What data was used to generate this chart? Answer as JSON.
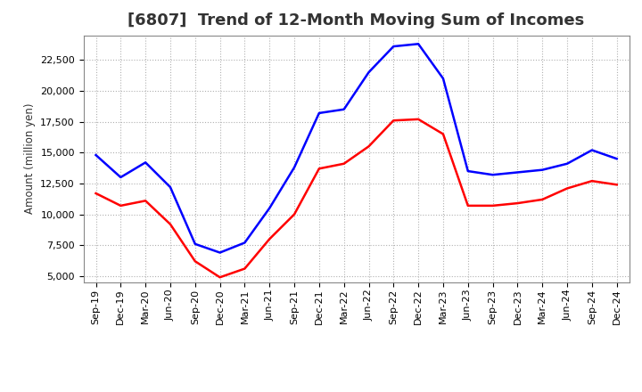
{
  "title": "[6807]  Trend of 12-Month Moving Sum of Incomes",
  "ylabel": "Amount (million yen)",
  "background_color": "#ffffff",
  "grid_color": "#b0b0b0",
  "x_labels": [
    "Sep-19",
    "Dec-19",
    "Mar-20",
    "Jun-20",
    "Sep-20",
    "Dec-20",
    "Mar-21",
    "Jun-21",
    "Sep-21",
    "Dec-21",
    "Mar-22",
    "Jun-22",
    "Sep-22",
    "Dec-22",
    "Mar-23",
    "Jun-23",
    "Sep-23",
    "Dec-23",
    "Mar-24",
    "Jun-24",
    "Sep-24",
    "Dec-24"
  ],
  "ordinary_income": [
    14800,
    13000,
    14200,
    12200,
    7600,
    6900,
    7700,
    10500,
    13800,
    18200,
    18500,
    21500,
    23600,
    23800,
    21000,
    13500,
    13200,
    13400,
    13600,
    14100,
    15200,
    14500
  ],
  "net_income": [
    11700,
    10700,
    11100,
    9200,
    6200,
    4900,
    5600,
    8000,
    10000,
    13700,
    14100,
    15500,
    17600,
    17700,
    16500,
    10700,
    10700,
    10900,
    11200,
    12100,
    12700,
    12400
  ],
  "ordinary_color": "#0000ff",
  "net_color": "#ff0000",
  "ylim": [
    4500,
    24500
  ],
  "yticks": [
    5000,
    7500,
    10000,
    12500,
    15000,
    17500,
    20000,
    22500
  ],
  "line_width": 1.8,
  "title_fontsize": 13,
  "legend_fontsize": 10,
  "tick_fontsize": 8,
  "title_color": "#333333"
}
